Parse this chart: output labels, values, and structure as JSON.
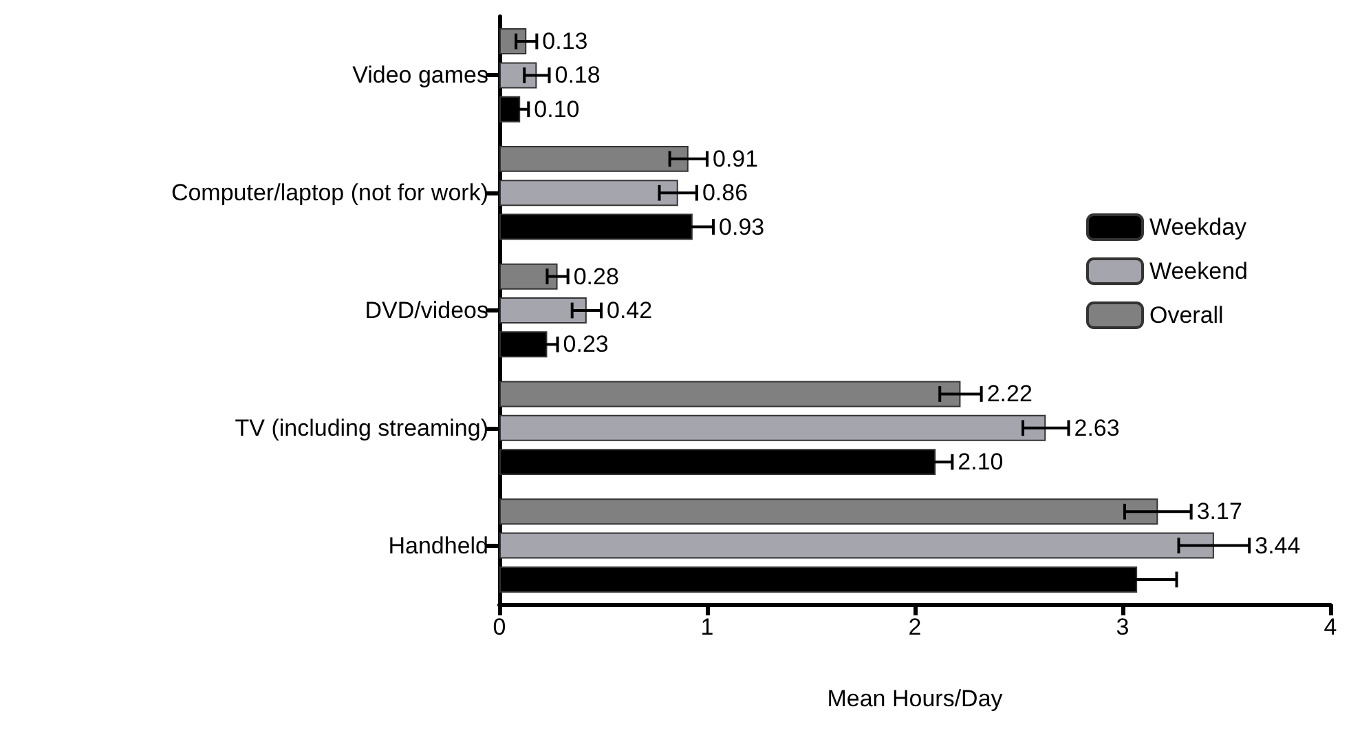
{
  "chart_data": {
    "type": "bar",
    "orientation": "horizontal",
    "xlabel": "Mean Hours/Day",
    "categories": [
      "Video games",
      "Computer/laptop (not for work)",
      "DVD/videos",
      "TV (including streaming)",
      "Handheld"
    ],
    "series": [
      {
        "name": "Weekday",
        "color": "#000000",
        "values": [
          0.1,
          0.93,
          0.23,
          2.1,
          3.07
        ],
        "errors": [
          0.04,
          0.1,
          0.05,
          0.08,
          0.19
        ],
        "value_labels": [
          "0.10",
          "0.93",
          "0.23",
          "2.10",
          null
        ]
      },
      {
        "name": "Weekend",
        "color": "#a5a5ae",
        "values": [
          0.18,
          0.86,
          0.42,
          2.63,
          3.44
        ],
        "errors": [
          0.06,
          0.09,
          0.07,
          0.11,
          0.17
        ],
        "value_labels": [
          "0.18",
          "0.86",
          "0.42",
          "2.63",
          "3.44"
        ]
      },
      {
        "name": "Overall",
        "color": "#808080",
        "values": [
          0.13,
          0.91,
          0.28,
          2.22,
          3.17
        ],
        "errors": [
          0.05,
          0.09,
          0.05,
          0.1,
          0.16
        ],
        "value_labels": [
          "0.13",
          "0.91",
          "0.28",
          "2.22",
          "3.17"
        ]
      }
    ],
    "xlim": [
      0,
      4
    ],
    "xticks": [
      0,
      1,
      2,
      3,
      4
    ],
    "grid": false,
    "legend": "right"
  }
}
